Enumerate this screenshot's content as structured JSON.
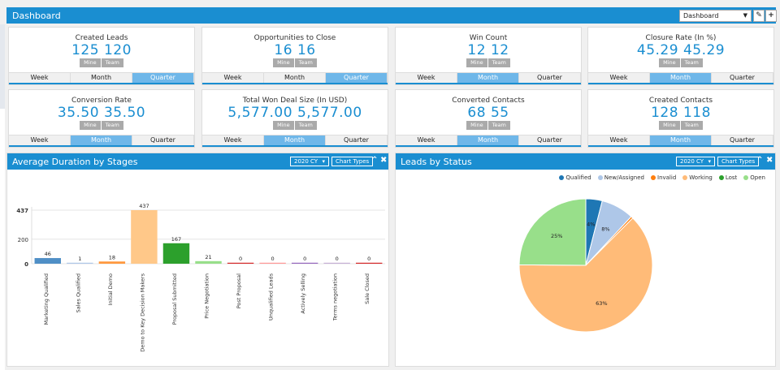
{
  "header": {
    "title": "Dashboard",
    "dashboard_select": "Dashboard",
    "edit_icon": "edit-icon",
    "add_icon": "plus-icon"
  },
  "cards": [
    {
      "title": "Created Leads",
      "mine": "125",
      "team": "120",
      "mine_label": "Mine",
      "team_label": "Team",
      "tabs": [
        "Week",
        "Month",
        "Quarter"
      ],
      "active": 2
    },
    {
      "title": "Opportunities to Close",
      "mine": "16",
      "team": "16",
      "mine_label": "Mine",
      "team_label": "Team",
      "tabs": [
        "Week",
        "Month",
        "Quarter"
      ],
      "active": 2
    },
    {
      "title": "Win Count",
      "mine": "12",
      "team": "12",
      "mine_label": "Mine",
      "team_label": "Team",
      "tabs": [
        "Week",
        "Month",
        "Quarter"
      ],
      "active": 1
    },
    {
      "title": "Closure Rate (In %)",
      "mine": "45.29",
      "team": "45.29",
      "mine_label": "Mine",
      "team_label": "Team",
      "tabs": [
        "Week",
        "Month",
        "Quarter"
      ],
      "active": 1
    },
    {
      "title": "Conversion Rate",
      "mine": "35.50",
      "team": "35.50",
      "mine_label": "Mine",
      "team_label": "Team",
      "tabs": [
        "Week",
        "Month",
        "Quarter"
      ],
      "active": 1
    },
    {
      "title": "Total Won Deal Size (In USD)",
      "mine": "5,577.00",
      "team": "5,577.00",
      "mine_label": "Mine",
      "team_label": "Team",
      "tabs": [
        "Week",
        "Month",
        "Quarter"
      ],
      "active": 1
    },
    {
      "title": "Converted Contacts",
      "mine": "68",
      "team": "55",
      "mine_label": "Mine",
      "team_label": "Team",
      "tabs": [
        "Week",
        "Month",
        "Quarter"
      ],
      "active": 1
    },
    {
      "title": "Created Contacts",
      "mine": "128",
      "team": "118",
      "mine_label": "Mine",
      "team_label": "Team",
      "tabs": [
        "Week",
        "Month",
        "Quarter"
      ],
      "active": 1
    }
  ],
  "panels": {
    "left": {
      "title": "Average Duration by Stages",
      "period": "2020 CY",
      "chart_types": "Chart Types"
    },
    "right": {
      "title": "Leads by Status",
      "period": "2020 CY",
      "chart_types": "Chart Types"
    }
  },
  "chart_data": [
    {
      "type": "bar",
      "categories": [
        "Marketing Qualified",
        "Sales Qualified",
        "Initial Demo",
        "Demo to Key Decision Makers",
        "Proposal Submitted",
        "Price Negotiation",
        "Post Proposal",
        "Unqualified Leads",
        "Actively Selling",
        "Terms negotiation",
        "Sale Closed"
      ],
      "values": [
        46,
        1,
        18,
        437,
        167,
        21,
        0,
        0,
        0,
        0,
        0
      ],
      "colors": [
        "#4f8fc6",
        "#aec7e8",
        "#ff983e",
        "#ffc889",
        "#2ca02c",
        "#98df8a",
        "#d62728",
        "#ff9896",
        "#9467bd",
        "#c5b0d5",
        "#d62728"
      ],
      "yticks": [
        "0",
        "200",
        "437"
      ],
      "ylim": [
        0,
        437
      ],
      "grid": true
    },
    {
      "type": "pie",
      "legend": [
        {
          "name": "Qualified",
          "color": "#1f77b4"
        },
        {
          "name": "New/Assigned",
          "color": "#aec7e8"
        },
        {
          "name": "Invalid",
          "color": "#ff7f0e"
        },
        {
          "name": "Working",
          "color": "#ffbb78"
        },
        {
          "name": "Lost",
          "color": "#2ca02c"
        },
        {
          "name": "Open",
          "color": "#98df8a"
        }
      ],
      "slices": [
        {
          "name": "Qualified",
          "value": 4,
          "label": "4%",
          "color": "#1f77b4"
        },
        {
          "name": "New/Assigned",
          "value": 8,
          "label": "8%",
          "color": "#aec7e8"
        },
        {
          "name": "Invalid",
          "value": 0.5,
          "label": "",
          "color": "#ff7f0e"
        },
        {
          "name": "Working",
          "value": 63,
          "label": "63%",
          "color": "#ffbb78"
        },
        {
          "name": "Lost",
          "value": 0,
          "label": "",
          "color": "#2ca02c"
        },
        {
          "name": "Open",
          "value": 25,
          "label": "25%",
          "color": "#98df8a"
        }
      ],
      "legend_position": "top-right"
    }
  ]
}
